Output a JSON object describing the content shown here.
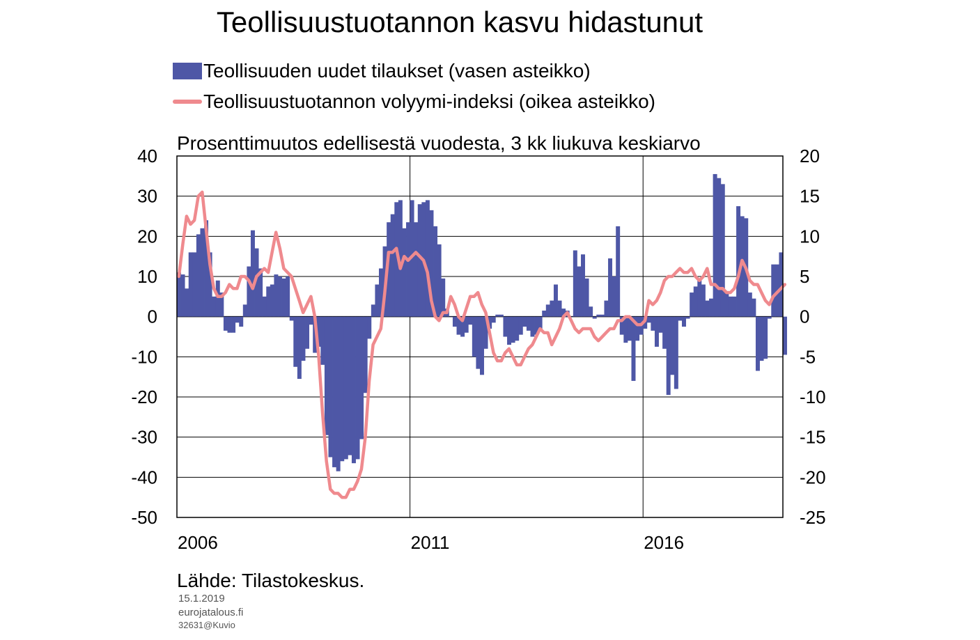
{
  "chart_data": {
    "type": "bar+line",
    "title": "Teollisuustuotannon kasvu hidastunut",
    "subtitle": "Prosenttimuutos edellisestä vuodesta, 3 kk liukuva keskiarvo",
    "x_ticks": [
      "2006",
      "2011",
      "2016"
    ],
    "y_left": {
      "range": [
        -50,
        40
      ],
      "ticks": [
        "40",
        "30",
        "20",
        "10",
        "0",
        "-10",
        "-20",
        "-30",
        "-40",
        "-50"
      ]
    },
    "y_right": {
      "range": [
        -25,
        20
      ],
      "ticks": [
        "20",
        "15",
        "10",
        "5",
        "0",
        "-5",
        "-10",
        "-15",
        "-20",
        "-25"
      ]
    },
    "grid": true,
    "x_range": [
      2006.0,
      2019.0
    ],
    "series": [
      {
        "name": "Teollisuuden uudet tilaukset (vasen asteikko)",
        "type": "bar",
        "axis": "left",
        "color": "#4e57a6",
        "start": "2006-01",
        "frequency": "monthly",
        "values": [
          11,
          10.5,
          7,
          16,
          16,
          20.5,
          22,
          24,
          16,
          5,
          9,
          6,
          -3.5,
          -4,
          -4,
          -1.5,
          -2.5,
          3,
          12.5,
          21.5,
          17,
          12,
          5,
          7.5,
          8,
          10.5,
          10,
          9.5,
          10,
          -1,
          -12.5,
          -15.5,
          -11,
          -8,
          -2,
          -9,
          -7.5,
          -12,
          -29.5,
          -35,
          -37.5,
          -38.5,
          -36,
          -35.5,
          -34.5,
          -36.5,
          -35.5,
          -30.5,
          -19,
          -5.5,
          3,
          8,
          12,
          17.5,
          23.5,
          25.5,
          28.5,
          29,
          22,
          23.5,
          29,
          23.5,
          28,
          28.5,
          29,
          26.5,
          22.5,
          18,
          9.5,
          2,
          0,
          -2.5,
          -4.5,
          -5,
          -4,
          -2,
          -10,
          -13,
          -14.5,
          -8,
          -3,
          -1.5,
          0.5,
          0.5,
          -5,
          -7,
          -6.5,
          -6,
          -4.5,
          -2.5,
          -3.5,
          -5,
          -4.5,
          -3.5,
          1.5,
          3,
          4,
          8,
          4,
          2,
          1.5,
          0,
          16.5,
          12.5,
          15.5,
          9.5,
          2.5,
          -0.5,
          0.5,
          0.5,
          4,
          14.5,
          10,
          22.5,
          -4.5,
          -6.5,
          -6,
          -16,
          -6,
          -4.5,
          -3,
          -1.5,
          -3.5,
          -7.5,
          -4,
          -8,
          -19.5,
          -14.5,
          -18,
          -1,
          -2.5,
          -0.5,
          6,
          7.5,
          9.5,
          8,
          4,
          4.5,
          35.5,
          34.5,
          33,
          6,
          5,
          5,
          27.5,
          25,
          24.5,
          6,
          4.5,
          -13.5,
          -11,
          -10.5,
          -0.5,
          13,
          13,
          16,
          -9.5
        ]
      },
      {
        "name": "Teollisuustuotannon volyymi-indeksi (oikea asteikko)",
        "type": "line",
        "axis": "right",
        "color": "#ef8a8e",
        "start": "2006-01",
        "frequency": "monthly",
        "values": [
          5,
          9,
          12.5,
          11.5,
          12,
          15,
          15.5,
          11,
          6.5,
          3.5,
          2.5,
          2.5,
          3,
          4,
          3.5,
          3.5,
          5,
          5,
          4.5,
          3.5,
          5,
          5.5,
          6,
          5.5,
          8,
          10.5,
          8.5,
          6,
          5.5,
          5,
          3.5,
          2,
          0.5,
          1.5,
          2.5,
          0,
          -5,
          -12,
          -18,
          -21.5,
          -22,
          -22,
          -22.5,
          -22.5,
          -21.5,
          -21.5,
          -20.5,
          -19,
          -15,
          -8,
          -3.5,
          -2.5,
          -1.5,
          3,
          8,
          8,
          8.5,
          6,
          7.5,
          7,
          7.5,
          8,
          7.5,
          7,
          5.5,
          2,
          0,
          -0.5,
          0.5,
          0.5,
          2.5,
          1.5,
          0,
          -0.5,
          1,
          2.5,
          2.5,
          3,
          1.5,
          0.5,
          -2,
          -4.5,
          -5.5,
          -5.5,
          -4.5,
          -4,
          -5,
          -6,
          -6,
          -5,
          -4,
          -3.5,
          -2.5,
          -1.5,
          -2,
          -2,
          -3.5,
          -2.5,
          -1.5,
          0,
          0.5,
          -0.5,
          -1.5,
          -2,
          -1.5,
          -1.5,
          -1.5,
          -2.5,
          -3,
          -2.5,
          -2,
          -1.5,
          -1.5,
          -0.5,
          -0.5,
          0,
          0,
          -0.5,
          -1,
          -1,
          -0.5,
          2,
          1.5,
          2,
          3,
          4.5,
          5,
          5,
          5.5,
          6,
          5.5,
          5.5,
          6,
          5,
          4.5,
          5,
          6,
          4,
          4,
          3.5,
          3.5,
          3,
          3,
          3.5,
          5,
          7,
          6,
          4.5,
          4,
          4,
          3,
          2,
          1.5,
          2.5,
          3,
          3.5,
          4
        ]
      }
    ]
  },
  "source": "Lähde: Tilastokeskus.",
  "date": "15.1.2019",
  "site": "eurojatalous.fi",
  "code": "32631@Kuvio"
}
